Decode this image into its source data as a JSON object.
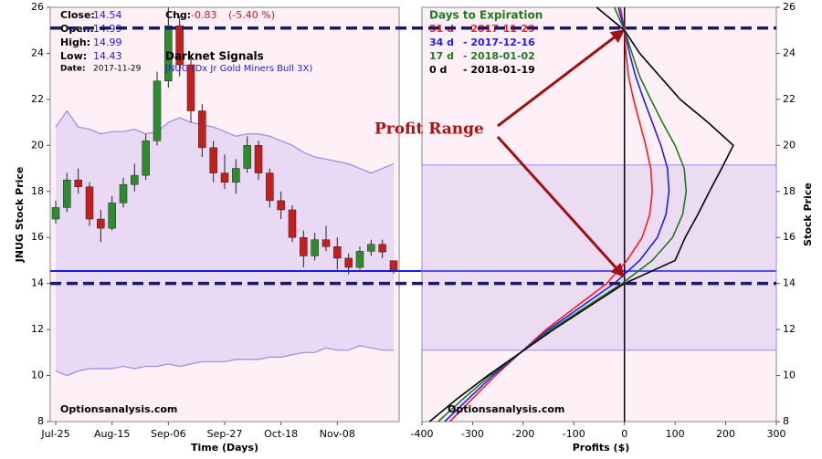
{
  "chart_data": [
    {
      "type": "candlestick",
      "info": [
        {
          "label": "Close:",
          "value": 14.54
        },
        {
          "label": "Open:",
          "value": 14.99
        },
        {
          "label": "High:",
          "value": 14.99
        },
        {
          "label": "Low:",
          "value": 14.43
        },
        {
          "label": "Date:",
          "value": "2017-11-29"
        }
      ],
      "change": {
        "label": "Chg:",
        "value": -0.83,
        "percent": "(-5.40 %)"
      },
      "subtitle": "Darknet Signals",
      "symbol": "JNUG (Dx Jr Gold Miners Bull 3X)",
      "watermark": "Optionsanalysis.com",
      "x_label": "Time (Days)",
      "y_label": "JNUG Stock Price",
      "categories": [
        "Jul-25",
        null,
        null,
        null,
        null,
        "Aug-15",
        null,
        null,
        null,
        null,
        "Sep-06",
        null,
        null,
        null,
        null,
        "Sep-27",
        null,
        null,
        null,
        null,
        "Oct-18",
        null,
        null,
        null,
        null,
        "Nov-08",
        null,
        null,
        null,
        null,
        null
      ],
      "open": [
        16.8,
        17.3,
        18.5,
        18.2,
        16.8,
        16.4,
        17.5,
        18.3,
        18.7,
        20.2,
        22.8,
        25.2,
        23.5,
        21.5,
        19.9,
        18.8,
        18.4,
        19.0,
        20.0,
        18.8,
        17.6,
        17.2,
        16.0,
        15.2,
        15.9,
        15.6,
        15.1,
        14.7,
        15.4,
        15.7,
        14.99
      ],
      "high": [
        17.6,
        18.8,
        19.0,
        18.4,
        17.2,
        17.8,
        18.6,
        19.2,
        20.5,
        23.2,
        26.0,
        25.6,
        23.8,
        21.8,
        20.2,
        19.6,
        19.4,
        20.4,
        20.2,
        19.0,
        18.0,
        17.4,
        16.3,
        16.2,
        16.5,
        16.0,
        15.3,
        15.6,
        15.9,
        15.9,
        14.99
      ],
      "low": [
        16.6,
        17.1,
        17.9,
        16.5,
        15.8,
        16.3,
        17.3,
        18.0,
        18.5,
        20.0,
        22.5,
        23.0,
        21.0,
        19.5,
        18.4,
        18.1,
        17.9,
        18.8,
        18.5,
        17.3,
        16.8,
        15.8,
        14.7,
        15.0,
        15.4,
        14.6,
        14.4,
        14.6,
        15.2,
        15.1,
        14.43
      ],
      "close": [
        17.3,
        18.5,
        18.2,
        16.8,
        16.4,
        17.5,
        18.3,
        18.7,
        20.2,
        22.8,
        25.2,
        23.5,
        21.5,
        19.9,
        18.8,
        18.4,
        19.0,
        20.0,
        18.8,
        17.6,
        17.2,
        16.0,
        15.2,
        15.9,
        15.6,
        15.1,
        14.7,
        15.4,
        15.7,
        15.37,
        14.54
      ],
      "band_upper": [
        20.8,
        21.5,
        20.8,
        20.7,
        20.5,
        20.6,
        20.6,
        20.7,
        20.5,
        20.6,
        21.0,
        21.2,
        21.0,
        20.9,
        20.8,
        20.6,
        20.4,
        20.5,
        20.5,
        20.4,
        20.2,
        20.0,
        19.7,
        19.5,
        19.4,
        19.3,
        19.2,
        19.0,
        18.8,
        19.0,
        19.2
      ],
      "band_lower": [
        10.2,
        10.0,
        10.2,
        10.3,
        10.3,
        10.3,
        10.4,
        10.3,
        10.4,
        10.4,
        10.5,
        10.4,
        10.5,
        10.6,
        10.6,
        10.6,
        10.7,
        10.7,
        10.7,
        10.8,
        10.8,
        10.9,
        11.0,
        11.0,
        11.2,
        11.1,
        11.1,
        11.3,
        11.2,
        11.1,
        11.1
      ],
      "up_color": "#2e8b2e",
      "down_color": "#c41e1e",
      "band_color": "#9a8ae6",
      "ylim": [
        8,
        26
      ],
      "yticks": [
        8,
        10,
        12,
        14,
        16,
        18,
        20,
        22,
        24,
        26
      ]
    },
    {
      "type": "line",
      "x_label": "Profits ($)",
      "y_label": "Stock Price",
      "legend_title": "Days to Expiration",
      "watermark": "Optionsanalysis.com",
      "annotation": {
        "text": "Profit Range",
        "low": 14.0,
        "high": 25.1
      },
      "band": [
        11.1,
        19.15
      ],
      "y": [
        8,
        9,
        10,
        11,
        12,
        13,
        14,
        15,
        16,
        17,
        18,
        19,
        20,
        21,
        22,
        23,
        24,
        25,
        26
      ],
      "series": [
        {
          "name": "51 d",
          "expiration": "- 2017-11-29",
          "color": "#ff1a1a",
          "x": [
            -345,
            -300,
            -255,
            -205,
            -155,
            -95,
            -35,
            5,
            35,
            50,
            55,
            52,
            42,
            30,
            18,
            8,
            3,
            0,
            -8
          ]
        },
        {
          "name": "34 d",
          "expiration": "- 2017-12-16",
          "color": "#1a1aff",
          "x": [
            -355,
            -308,
            -260,
            -205,
            -150,
            -85,
            -20,
            30,
            65,
            82,
            88,
            85,
            72,
            55,
            38,
            22,
            10,
            0,
            -12
          ]
        },
        {
          "name": "17 d",
          "expiration": "- 2018-01-02",
          "color": "#1e7a1e",
          "x": [
            -368,
            -318,
            -265,
            -205,
            -145,
            -75,
            -5,
            55,
            95,
            115,
            122,
            118,
            100,
            75,
            52,
            30,
            15,
            0,
            -20
          ]
        },
        {
          "name": "0 d",
          "expiration": "- 2018-01-19",
          "color": "#000000",
          "x": [
            -385,
            -330,
            -270,
            -205,
            -140,
            -70,
            0,
            100,
            120,
            145,
            168,
            192,
            215,
            165,
            110,
            70,
            30,
            0,
            -55
          ]
        }
      ],
      "xlim": [
        -400,
        300
      ],
      "xticks": [
        -400,
        -300,
        -200,
        -100,
        0,
        100,
        200,
        300
      ],
      "ylim": [
        8,
        26
      ],
      "yticks": [
        8,
        10,
        12,
        14,
        16,
        18,
        20,
        22,
        24,
        26
      ]
    }
  ]
}
